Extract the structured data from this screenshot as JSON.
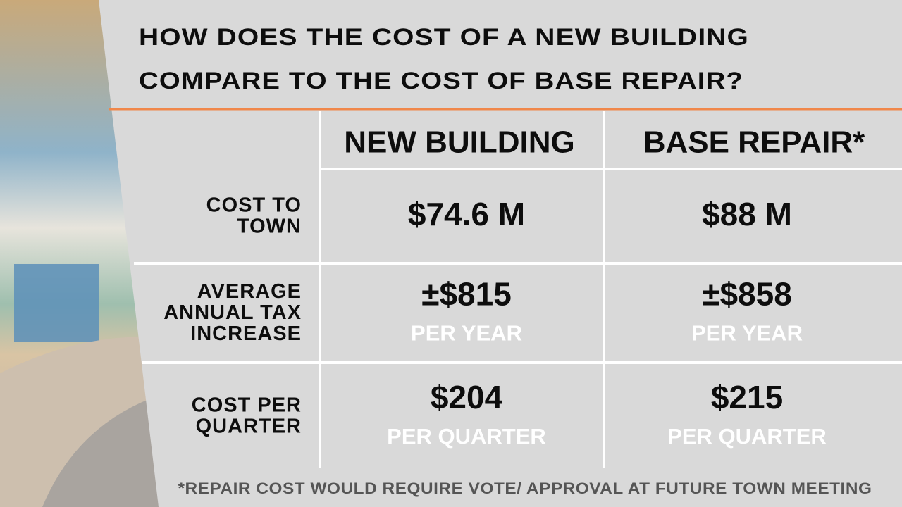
{
  "title": {
    "lines": [
      "HOW DOES THE COST OF A NEW BUILDING",
      "COMPARE TO THE COST OF BASE REPAIR?"
    ]
  },
  "table": {
    "columns": [
      "NEW BUILDING",
      "BASE REPAIR*"
    ],
    "rows": [
      {
        "label": [
          "COST TO",
          "TOWN"
        ],
        "cells": [
          {
            "value": "$74.6 M"
          },
          {
            "value": "$88 M"
          }
        ]
      },
      {
        "label": [
          "AVERAGE",
          "ANNUAL TAX",
          "INCREASE"
        ],
        "cells": [
          {
            "value": "±$815",
            "unit": "PER YEAR"
          },
          {
            "value": "±$858",
            "unit": "PER YEAR"
          }
        ]
      },
      {
        "label": [
          "COST PER",
          "QUARTER"
        ],
        "cells": [
          {
            "value": "$204",
            "unit": "PER QUARTER"
          },
          {
            "value": "$215",
            "unit": "PER QUARTER"
          }
        ]
      }
    ]
  },
  "footnote": "*REPAIR COST WOULD REQUIRE VOTE/ APPROVAL AT FUTURE TOWN MEETING"
}
